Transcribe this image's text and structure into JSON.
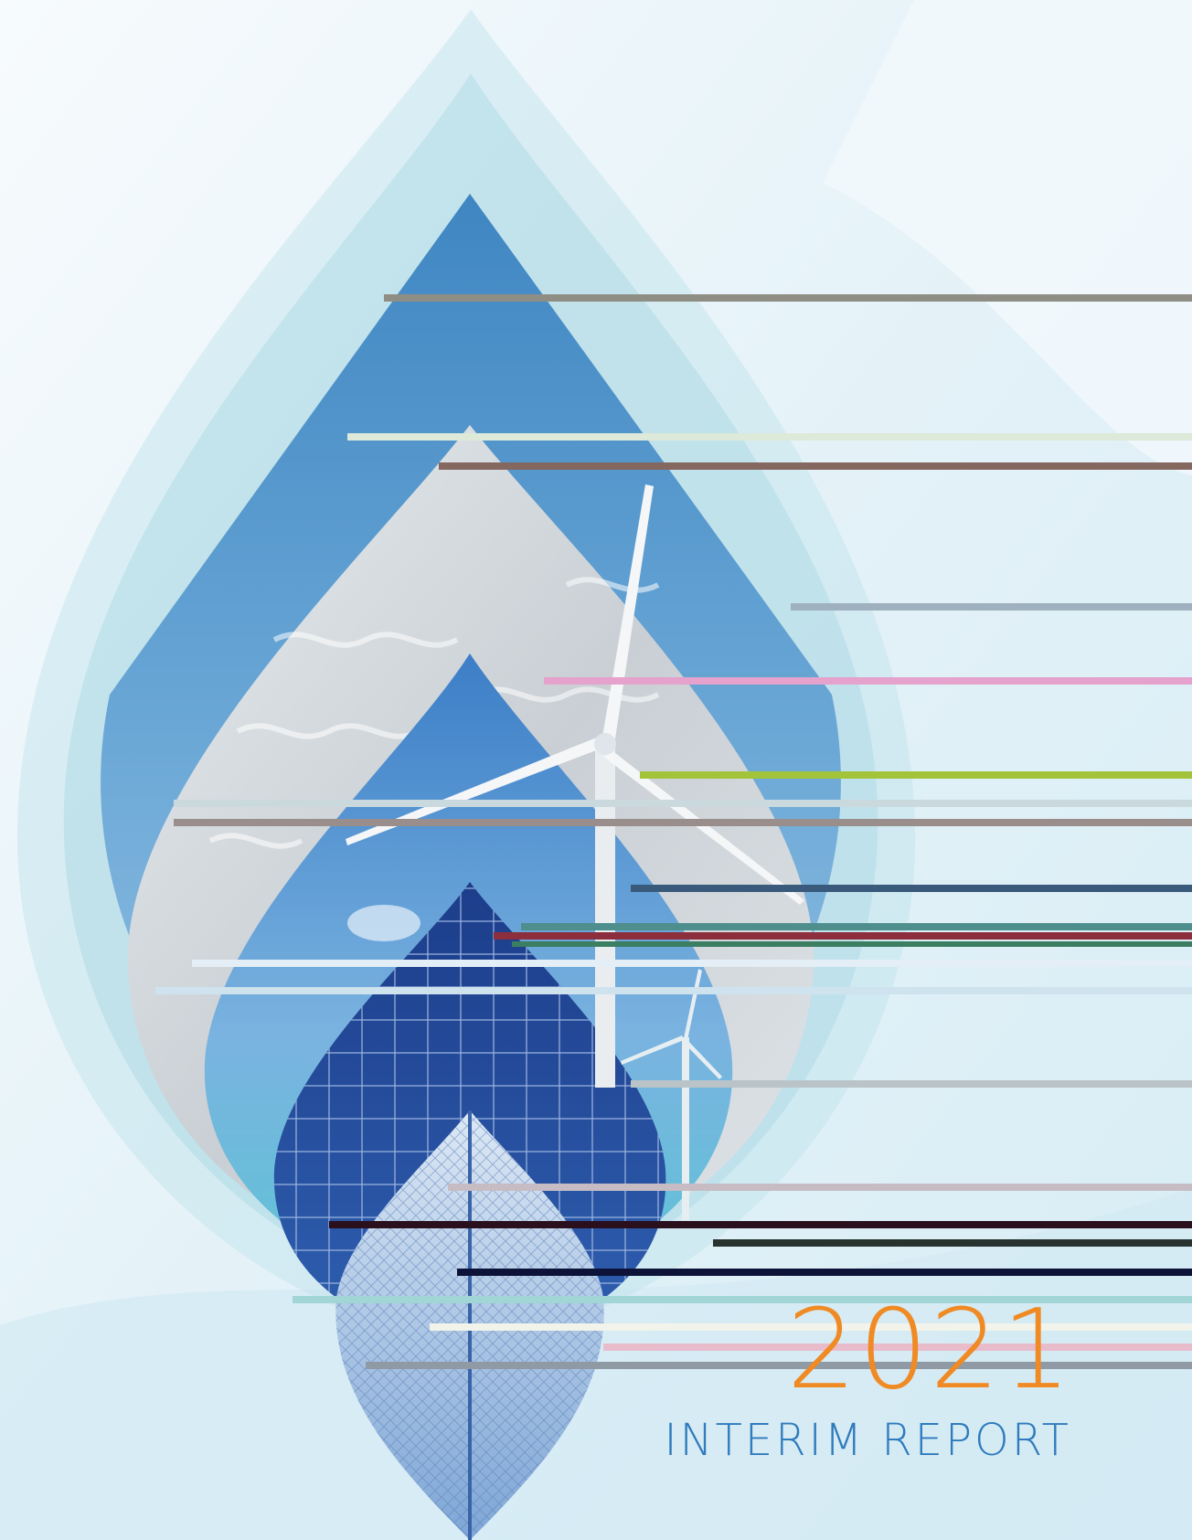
{
  "cover": {
    "year": "2021",
    "title": "INTERIM REPORT"
  },
  "colors": {
    "year": "#f08a24",
    "title": "#2f7bbd",
    "background": "#eaf5fa"
  }
}
